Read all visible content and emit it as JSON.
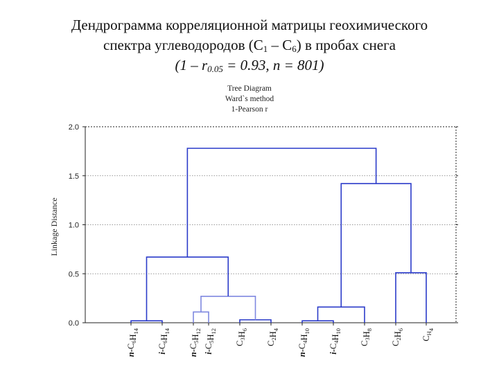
{
  "slide": {
    "title_line1": "Дендрограмма корреляционной матрицы геохимического",
    "title_line2_a": "спектра углеводородов (С",
    "title_line2_sub1": "1",
    "title_line2_b": " – С",
    "title_line2_sub2": "6",
    "title_line2_c": ") в пробах снега",
    "title_line3_a": "(1 – r",
    "title_line3_sub": "0.05",
    "title_line3_b": " = 0.93, n = 801)"
  },
  "colors": {
    "dendrogram_primary": "#2b3bc9",
    "dendrogram_secondary": "#7f88e0",
    "axis": "#222222",
    "grid": "#777777"
  },
  "chart_data": {
    "type": "dendrogram",
    "title": "Tree Diagram",
    "subtitle_1": "Ward`s method",
    "subtitle_2": "1-Pearson r",
    "ylabel": "Linkage Distance",
    "ylim": [
      0,
      2.0
    ],
    "yticks": [
      "0.0",
      "0.5",
      "1.0",
      "1.5",
      "2.0"
    ],
    "ytick_values": [
      0,
      0.5,
      1.0,
      1.5,
      2.0
    ],
    "grid": true,
    "leaves": [
      {
        "prefix": "n-",
        "parts": [
          [
            "C",
            "6"
          ],
          [
            "H",
            "14"
          ]
        ]
      },
      {
        "prefix": "i-",
        "parts": [
          [
            "C",
            "6"
          ],
          [
            "H",
            "14"
          ]
        ]
      },
      {
        "prefix": "n-",
        "parts": [
          [
            "C",
            "5"
          ],
          [
            "H",
            "12"
          ]
        ]
      },
      {
        "prefix": "i-",
        "parts": [
          [
            "C",
            "5"
          ],
          [
            "H",
            "12"
          ]
        ]
      },
      {
        "prefix": "",
        "parts": [
          [
            "C",
            "3"
          ],
          [
            "H",
            "6"
          ]
        ]
      },
      {
        "prefix": "",
        "parts": [
          [
            "C",
            "2"
          ],
          [
            "H",
            "4"
          ]
        ]
      },
      {
        "prefix": "n-",
        "parts": [
          [
            "C",
            "4"
          ],
          [
            "H",
            "10"
          ]
        ]
      },
      {
        "prefix": "i-",
        "parts": [
          [
            "C",
            "4"
          ],
          [
            "H",
            "10"
          ]
        ]
      },
      {
        "prefix": "",
        "parts": [
          [
            "C",
            "3"
          ],
          [
            "H",
            "8"
          ]
        ]
      },
      {
        "prefix": "",
        "parts": [
          [
            "C",
            "2"
          ],
          [
            "H",
            "6"
          ]
        ]
      },
      {
        "prefix": "",
        "parts": [
          [
            "C",
            "H"
          ],
          [
            "",
            "4"
          ]
        ]
      }
    ],
    "merges": [
      {
        "left": "L0",
        "right": "L1",
        "height": 0.02,
        "color": "primary"
      },
      {
        "left": "L2",
        "right": "L3",
        "height": 0.11,
        "color": "secondary"
      },
      {
        "left": "L4",
        "right": "L5",
        "height": 0.03,
        "color": "primary"
      },
      {
        "left": "L6",
        "right": "L7",
        "height": 0.02,
        "color": "primary"
      },
      {
        "left": "M1",
        "right": "M2",
        "height": 0.27,
        "color": "secondary"
      },
      {
        "left": "M3",
        "right": "L8",
        "height": 0.16,
        "color": "primary"
      },
      {
        "left": "L9",
        "right": "L10",
        "height": 0.51,
        "color": "primary"
      },
      {
        "left": "M0",
        "right": "M4",
        "height": 0.67,
        "color": "primary"
      },
      {
        "left": "M5",
        "right": "M6",
        "height": 1.42,
        "color": "primary"
      },
      {
        "left": "M7",
        "right": "M8",
        "height": 1.78,
        "color": "primary"
      }
    ]
  }
}
